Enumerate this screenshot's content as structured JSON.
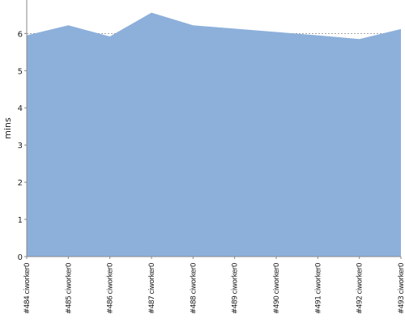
{
  "chart_data": {
    "type": "area",
    "categories": [
      "#484 ciworker0",
      "#485 ciworker0",
      "#486 ciworker0",
      "#487 ciworker0",
      "#488 ciworker0",
      "#489 ciworker0",
      "#490 ciworker0",
      "#491 ciworker0",
      "#492 ciworker0",
      "#493 ciworker0"
    ],
    "values": [
      5.95,
      6.22,
      5.92,
      6.56,
      6.22,
      6.13,
      6.04,
      5.95,
      5.85,
      6.12
    ],
    "ylabel": "mins",
    "xlabel": "",
    "title": "",
    "ylim": [
      0,
      6.9
    ],
    "yticks": [
      0,
      1,
      2,
      3,
      4,
      5,
      6
    ],
    "grid": true,
    "legend": "none",
    "colors": {
      "fill": "#8db0db",
      "axis": "#888888",
      "grid": "#8a8a8a",
      "text": "#222222",
      "background": "#ffffff"
    }
  }
}
